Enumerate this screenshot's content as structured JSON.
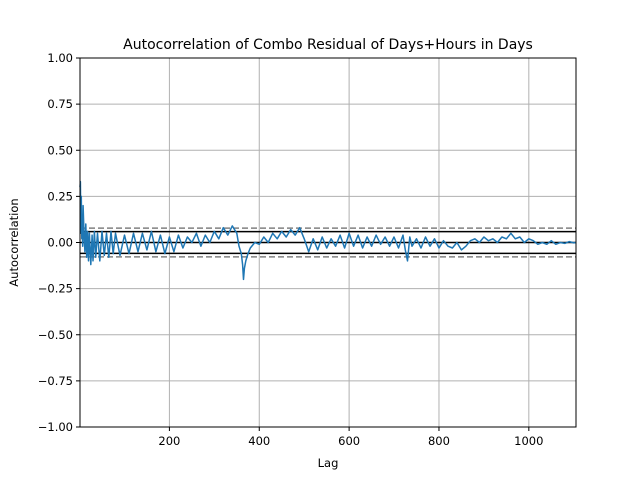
{
  "chart_data": {
    "type": "line",
    "title": "Autocorrelation of Combo Residual of Days+Hours in Days",
    "xlabel": "Lag",
    "ylabel": "Autocorrelation",
    "xlim": [
      1,
      1105
    ],
    "ylim": [
      -1.0,
      1.0
    ],
    "x_ticks": [
      200,
      400,
      600,
      800,
      1000
    ],
    "x_tick_labels": [
      "200",
      "400",
      "600",
      "800",
      "1000"
    ],
    "y_ticks": [
      -1.0,
      -0.75,
      -0.5,
      -0.25,
      0.0,
      0.25,
      0.5,
      0.75,
      1.0
    ],
    "y_tick_labels": [
      "−1.00",
      "−0.75",
      "−0.50",
      "−0.25",
      "0.00",
      "0.25",
      "0.50",
      "0.75",
      "1.00"
    ],
    "grid": true,
    "series": [
      {
        "color": "#1f77b4",
        "x": [
          1,
          2,
          3,
          4,
          5,
          6,
          7,
          8,
          10,
          12,
          14,
          16,
          18,
          20,
          22,
          25,
          28,
          30,
          33,
          36,
          40,
          45,
          50,
          55,
          60,
          65,
          70,
          75,
          80,
          90,
          100,
          110,
          120,
          130,
          140,
          150,
          160,
          170,
          180,
          190,
          200,
          210,
          220,
          230,
          240,
          250,
          260,
          270,
          280,
          290,
          300,
          310,
          320,
          330,
          340,
          350,
          355,
          360,
          363,
          365,
          367,
          370,
          375,
          380,
          390,
          400,
          410,
          420,
          430,
          440,
          450,
          460,
          470,
          480,
          490,
          500,
          510,
          520,
          530,
          540,
          550,
          560,
          570,
          580,
          590,
          600,
          610,
          620,
          630,
          640,
          650,
          660,
          670,
          680,
          690,
          700,
          710,
          720,
          725,
          730,
          735,
          740,
          750,
          760,
          770,
          780,
          790,
          800,
          810,
          820,
          830,
          840,
          850,
          860,
          870,
          880,
          890,
          900,
          910,
          920,
          930,
          940,
          950,
          960,
          970,
          980,
          990,
          1000,
          1010,
          1020,
          1030,
          1040,
          1050,
          1060,
          1070,
          1080,
          1090,
          1100,
          1105
        ],
        "y": [
          0.3,
          0.33,
          0.05,
          0.25,
          0.02,
          0.15,
          -0.02,
          0.2,
          0.05,
          -0.05,
          0.1,
          -0.08,
          0.06,
          -0.1,
          0.05,
          -0.12,
          0.04,
          -0.1,
          0.06,
          -0.08,
          0.05,
          -0.1,
          0.06,
          -0.07,
          0.05,
          -0.08,
          0.06,
          -0.06,
          0.05,
          -0.07,
          0.04,
          -0.06,
          0.05,
          -0.05,
          0.05,
          -0.04,
          0.06,
          -0.05,
          0.04,
          -0.06,
          0.03,
          -0.05,
          0.04,
          -0.03,
          0.03,
          0.0,
          0.05,
          -0.02,
          0.04,
          0.0,
          0.06,
          0.02,
          0.08,
          0.04,
          0.09,
          0.05,
          -0.02,
          -0.06,
          -0.12,
          -0.2,
          -0.14,
          -0.1,
          -0.06,
          -0.03,
          0.0,
          -0.01,
          0.03,
          0.0,
          0.05,
          0.02,
          0.06,
          0.03,
          0.07,
          0.04,
          0.08,
          0.02,
          -0.05,
          0.02,
          -0.04,
          0.03,
          -0.03,
          0.02,
          -0.02,
          0.04,
          -0.03,
          0.05,
          -0.02,
          0.04,
          -0.03,
          0.03,
          -0.02,
          0.04,
          -0.01,
          0.03,
          -0.02,
          0.03,
          -0.03,
          0.04,
          -0.04,
          -0.1,
          0.03,
          -0.02,
          0.02,
          -0.03,
          0.03,
          -0.02,
          0.02,
          -0.03,
          0.01,
          -0.02,
          -0.03,
          0.0,
          -0.04,
          -0.02,
          0.01,
          0.02,
          0.0,
          0.03,
          0.01,
          0.02,
          0.0,
          0.03,
          0.02,
          0.05,
          0.02,
          0.03,
          0.0,
          0.02,
          0.01,
          -0.01,
          0.0,
          -0.01,
          0.01,
          -0.01,
          0.0,
          -0.005,
          0.005,
          -0.002,
          0.0
        ]
      }
    ],
    "reference_lines": [
      {
        "y": 0.0,
        "color": "#000000",
        "style": "solid"
      },
      {
        "y": 0.0589,
        "color": "#000000",
        "style": "solid"
      },
      {
        "y": -0.0589,
        "color": "#000000",
        "style": "solid"
      },
      {
        "y": 0.0776,
        "color": "#808080",
        "style": "dashed"
      },
      {
        "y": -0.0776,
        "color": "#808080",
        "style": "dashed"
      }
    ]
  }
}
